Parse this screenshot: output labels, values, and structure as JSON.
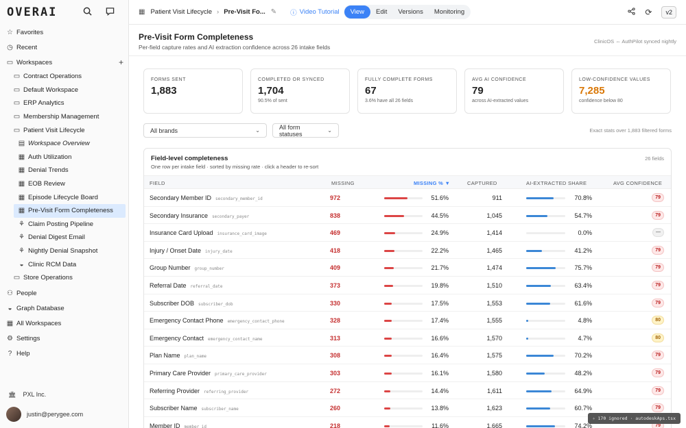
{
  "app": {
    "logo": "OVERAI"
  },
  "sidebar": {
    "top_items": [
      {
        "label": "Favorites",
        "icon": "star-icon"
      },
      {
        "label": "Recent",
        "icon": "clock-icon"
      },
      {
        "label": "Workspaces",
        "icon": "folder-icon"
      }
    ],
    "workspaces": [
      "Contract Operations",
      "Default Workspace",
      "ERP Analytics",
      "Membership Management",
      "Patient Visit Lifecycle"
    ],
    "children": [
      {
        "label": "Workspace Overview",
        "icon": "book-icon"
      },
      {
        "label": "Auth Utilization",
        "icon": "table-icon"
      },
      {
        "label": "Denial Trends",
        "icon": "table-icon"
      },
      {
        "label": "EOB Review",
        "icon": "table-icon"
      },
      {
        "label": "Episode Lifecycle Board",
        "icon": "table-icon"
      },
      {
        "label": "Pre-Visit Form Completeness",
        "icon": "table-icon"
      },
      {
        "label": "Claim Posting Pipeline",
        "icon": "pipeline-icon"
      },
      {
        "label": "Denial Digest Email",
        "icon": "pipeline-icon"
      },
      {
        "label": "Nightly Denial Snapshot",
        "icon": "pipeline-icon"
      },
      {
        "label": "Clinic RCM Data",
        "icon": "database-icon"
      }
    ],
    "after_ws": "Store Operations",
    "bottom_items": [
      {
        "label": "People",
        "icon": "people-icon"
      },
      {
        "label": "Graph Database",
        "icon": "database-icon"
      },
      {
        "label": "All Workspaces",
        "icon": "grid-icon"
      },
      {
        "label": "Settings",
        "icon": "gear-icon"
      },
      {
        "label": "Help",
        "icon": "help-icon"
      }
    ],
    "org": "PXL Inc.",
    "user": "justin@perygee.com"
  },
  "topbar": {
    "crumb_parent": "Patient Visit Lifecycle",
    "crumb_current": "Pre-Visit Fo...",
    "tutorial": "Video Tutorial",
    "tabs": [
      "View",
      "Edit",
      "Versions",
      "Monitoring"
    ],
    "version": "v2"
  },
  "header": {
    "title": "Pre-Visit Form Completeness",
    "subtitle": "Per-field capture rates and AI extraction confidence across 26 intake fields",
    "sync": "ClinicOS ⇔ AuthPilot synced nightly"
  },
  "kpis": [
    {
      "label": "FORMS SENT",
      "value": "1,883",
      "note": ""
    },
    {
      "label": "COMPLETED OR SYNCED",
      "value": "1,704",
      "note": "90.5% of sent"
    },
    {
      "label": "FULLY COMPLETE FORMS",
      "value": "67",
      "note": "3.6% have all 26 fields"
    },
    {
      "label": "AVG AI CONFIDENCE",
      "value": "79",
      "note": "across AI-extracted values"
    },
    {
      "label": "LOW-CONFIDENCE VALUES",
      "value": "7,285",
      "note": "confidence below 80"
    }
  ],
  "filters": {
    "brands": "All brands",
    "statuses": "All form statuses",
    "exact": "Exact stats over 1,883 filtered forms"
  },
  "table": {
    "title": "Field-level completeness",
    "subtitle": "One row per intake field · sorted by missing rate · click a header to re-sort",
    "count": "26 fields",
    "headers": {
      "field": "FIELD",
      "missing": "MISSING",
      "missing_pct": "MISSING % ▼",
      "captured": "CAPTURED",
      "ai_share": "AI-EXTRACTED SHARE",
      "confidence": "AVG CONFIDENCE"
    },
    "rows": [
      {
        "name": "Secondary Member ID",
        "key": "secondary_member_id",
        "missing": "972",
        "missing_pct": 51.6,
        "missing_pct_label": "51.6%",
        "captured": "911",
        "ai_share": 70.8,
        "ai_share_label": "70.8%",
        "conf": "79",
        "conf_level": "red"
      },
      {
        "name": "Secondary Insurance",
        "key": "secondary_payer",
        "missing": "838",
        "missing_pct": 44.5,
        "missing_pct_label": "44.5%",
        "captured": "1,045",
        "ai_share": 54.7,
        "ai_share_label": "54.7%",
        "conf": "79",
        "conf_level": "red"
      },
      {
        "name": "Insurance Card Upload",
        "key": "insurance_card_image",
        "missing": "469",
        "missing_pct": 24.9,
        "missing_pct_label": "24.9%",
        "captured": "1,414",
        "ai_share": 0.0,
        "ai_share_label": "0.0%",
        "conf": "—",
        "conf_level": "grey"
      },
      {
        "name": "Injury / Onset Date",
        "key": "injury_date",
        "missing": "418",
        "missing_pct": 22.2,
        "missing_pct_label": "22.2%",
        "captured": "1,465",
        "ai_share": 41.2,
        "ai_share_label": "41.2%",
        "conf": "79",
        "conf_level": "red"
      },
      {
        "name": "Group Number",
        "key": "group_number",
        "missing": "409",
        "missing_pct": 21.7,
        "missing_pct_label": "21.7%",
        "captured": "1,474",
        "ai_share": 75.7,
        "ai_share_label": "75.7%",
        "conf": "79",
        "conf_level": "red"
      },
      {
        "name": "Referral Date",
        "key": "referral_date",
        "missing": "373",
        "missing_pct": 19.8,
        "missing_pct_label": "19.8%",
        "captured": "1,510",
        "ai_share": 63.4,
        "ai_share_label": "63.4%",
        "conf": "79",
        "conf_level": "red"
      },
      {
        "name": "Subscriber DOB",
        "key": "subscriber_dob",
        "missing": "330",
        "missing_pct": 17.5,
        "missing_pct_label": "17.5%",
        "captured": "1,553",
        "ai_share": 61.6,
        "ai_share_label": "61.6%",
        "conf": "79",
        "conf_level": "red"
      },
      {
        "name": "Emergency Contact Phone",
        "key": "emergency_contact_phone",
        "missing": "328",
        "missing_pct": 17.4,
        "missing_pct_label": "17.4%",
        "captured": "1,555",
        "ai_share": 4.8,
        "ai_share_label": "4.8%",
        "conf": "80",
        "conf_level": "amber"
      },
      {
        "name": "Emergency Contact",
        "key": "emergency_contact_name",
        "missing": "313",
        "missing_pct": 16.6,
        "missing_pct_label": "16.6%",
        "captured": "1,570",
        "ai_share": 4.7,
        "ai_share_label": "4.7%",
        "conf": "80",
        "conf_level": "amber"
      },
      {
        "name": "Plan Name",
        "key": "plan_name",
        "missing": "308",
        "missing_pct": 16.4,
        "missing_pct_label": "16.4%",
        "captured": "1,575",
        "ai_share": 70.2,
        "ai_share_label": "70.2%",
        "conf": "79",
        "conf_level": "red"
      },
      {
        "name": "Primary Care Provider",
        "key": "primary_care_provider",
        "missing": "303",
        "missing_pct": 16.1,
        "missing_pct_label": "16.1%",
        "captured": "1,580",
        "ai_share": 48.2,
        "ai_share_label": "48.2%",
        "conf": "79",
        "conf_level": "red"
      },
      {
        "name": "Referring Provider",
        "key": "referring_provider",
        "missing": "272",
        "missing_pct": 14.4,
        "missing_pct_label": "14.4%",
        "captured": "1,611",
        "ai_share": 64.9,
        "ai_share_label": "64.9%",
        "conf": "79",
        "conf_level": "red"
      },
      {
        "name": "Subscriber Name",
        "key": "subscriber_name",
        "missing": "260",
        "missing_pct": 13.8,
        "missing_pct_label": "13.8%",
        "captured": "1,623",
        "ai_share": 60.7,
        "ai_share_label": "60.7%",
        "conf": "79",
        "conf_level": "red"
      },
      {
        "name": "Member ID",
        "key": "member_id",
        "missing": "218",
        "missing_pct": 11.6,
        "missing_pct_label": "11.6%",
        "captured": "1,665",
        "ai_share": 74.2,
        "ai_share_label": "74.2%",
        "conf": "79",
        "conf_level": "red"
      }
    ]
  },
  "toast": "✧ 170 ignored · autodeskAps.tsx"
}
